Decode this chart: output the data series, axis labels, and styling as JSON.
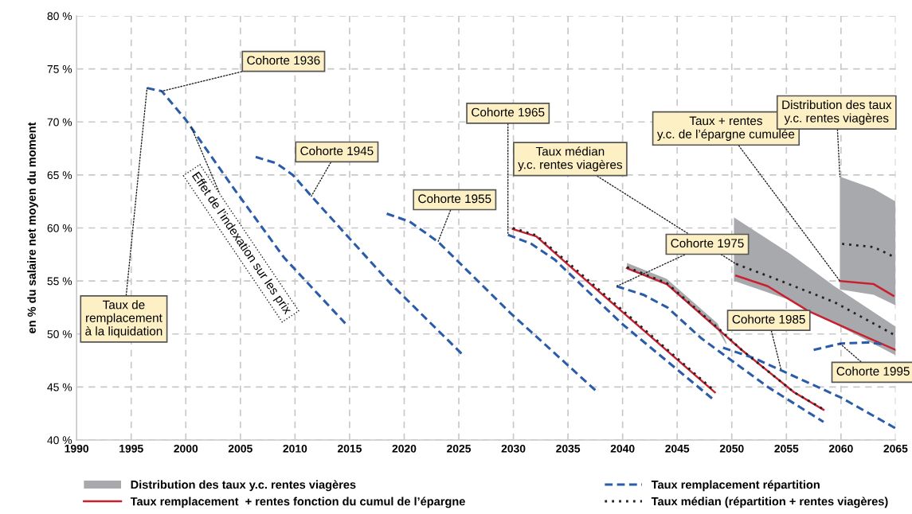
{
  "chart_data": {
    "type": "line",
    "ylabel": "en % du salaire net moyen du moment",
    "xlim": [
      1990,
      2065
    ],
    "xticks": [
      1990,
      1995,
      2000,
      2005,
      2010,
      2015,
      2020,
      2025,
      2030,
      2035,
      2040,
      2045,
      2050,
      2055,
      2060,
      2065
    ],
    "ylim": [
      40,
      80
    ],
    "yticks": [
      {
        "value": 40,
        "label": "40 %"
      },
      {
        "value": 45,
        "label": "45 %"
      },
      {
        "value": 50,
        "label": "50 %"
      },
      {
        "value": 55,
        "label": "55 %"
      },
      {
        "value": 60,
        "label": "60 %"
      },
      {
        "value": 65,
        "label": "65 %"
      },
      {
        "value": 70,
        "label": "70 %"
      },
      {
        "value": 75,
        "label": "75 %"
      },
      {
        "value": 80,
        "label": "80 %"
      }
    ],
    "grid": true,
    "legend": "bottom",
    "marker": "none",
    "series": [
      {
        "name": "Distribution des taux y.c. rentes viagères",
        "type": "area",
        "color": "#a8a9ad",
        "x": [
          2040.4,
          2044.05,
          2048.7,
          2049.5
        ],
        "values": [
          null,
          null,
          null,
          null
        ],
        "upper": [
          56.7,
          55.2,
          51.0,
          49.2
        ],
        "lower": [
          56.1,
          54.6,
          50.4,
          49.0
        ]
      },
      {
        "type": "area",
        "color": "#a8a9ad",
        "x": [
          2050.2,
          2055.3,
          2059.4,
          2065
        ],
        "values": [
          null,
          null,
          null,
          null
        ],
        "upper": [
          61.0,
          57.6,
          54.5,
          50.7
        ],
        "lower": [
          55.0,
          53.2,
          51.0,
          48.0
        ]
      },
      {
        "type": "area",
        "color": "#a8a9ad",
        "x": [
          2059.9,
          2063.0,
          2065
        ],
        "values": [
          null,
          null,
          null
        ],
        "upper": [
          64.85,
          63.7,
          62.5
        ],
        "lower": [
          54.2,
          53.7,
          52.7
        ]
      },
      {
        "name": "Taux remplacement  + rentes fonction du cumul de l’épargne",
        "line_style": "solid",
        "color": "#c8202f",
        "x": [
          2029.95,
          2032.1,
          2035.05,
          2048.45
        ],
        "values": [
          59.9,
          59.2,
          56.5,
          44.5
        ]
      },
      {
        "line_style": "solid",
        "color": "#c8202f",
        "x": [
          2040.4,
          2044.05,
          2048.7,
          2050.9,
          2053.3,
          2055.7,
          2058.4
        ],
        "values": [
          56.2,
          54.7,
          50.5,
          48.5,
          46.5,
          44.5,
          42.85
        ]
      },
      {
        "line_style": "solid",
        "color": "#c8202f",
        "x": [
          2050.4,
          2053.3,
          2056.95,
          2060.6,
          2065
        ],
        "values": [
          55.5,
          54.5,
          52.2,
          50.5,
          48.5
        ]
      },
      {
        "line_style": "solid",
        "color": "#c8202f",
        "x": [
          2059.9,
          2063.0,
          2064.8
        ],
        "values": [
          55.0,
          54.7,
          53.6
        ]
      },
      {
        "name": "Taux remplacement répartition",
        "line_style": "dashed",
        "color": "#2a5caa",
        "x": [
          1996.45,
          1997.8,
          2000.0,
          2004.2,
          2009.0,
          2014.6
        ],
        "values": [
          73.2,
          72.9,
          70.2,
          64.0,
          57.2,
          51.0
        ]
      },
      {
        "line_style": "dashed",
        "color": "#2a5caa",
        "x": [
          2006.4,
          2008.3,
          2009.8,
          2011.5,
          2015.0,
          2018.8,
          2025.3
        ],
        "values": [
          66.7,
          66.1,
          65.0,
          63.0,
          59.0,
          54.7,
          48.1
        ]
      },
      {
        "line_style": "dashed",
        "color": "#2a5caa",
        "x": [
          2018.4,
          2020.5,
          2023.1,
          2029.7,
          2037.5
        ],
        "values": [
          61.35,
          60.6,
          58.7,
          52.0,
          44.7
        ]
      },
      {
        "line_style": "dashed",
        "color": "#2a5caa",
        "x": [
          2029.5,
          2031.65,
          2033.8,
          2039.9,
          2048.45
        ],
        "values": [
          59.35,
          58.5,
          57.0,
          51.0,
          43.7
        ]
      },
      {
        "line_style": "dashed",
        "color": "#2a5caa",
        "x": [
          2039.45,
          2041.9,
          2044.1,
          2047.2,
          2053.3,
          2058.4
        ],
        "values": [
          54.5,
          53.7,
          52.5,
          49.6,
          45.0,
          41.7
        ]
      },
      {
        "line_style": "dashed",
        "color": "#2a5caa",
        "x": [
          2049.2,
          2052.1,
          2055.3,
          2060.0,
          2065.0
        ],
        "values": [
          48.7,
          47.7,
          46.2,
          44.0,
          41.1
        ]
      },
      {
        "line_style": "dashed",
        "color": "#2a5caa",
        "x": [
          2057.5,
          2060.0,
          2062.5,
          2064.0
        ],
        "values": [
          48.5,
          49.1,
          49.2,
          49.0
        ]
      },
      {
        "name": "Taux médian (répartition + rentes viagères)",
        "line_style": "dotted",
        "color": "#222222",
        "x": [
          2029.95,
          2032.1,
          2035.05,
          2048.45
        ],
        "values": [
          60.0,
          59.3,
          56.7,
          44.6
        ]
      },
      {
        "line_style": "dotted",
        "color": "#222222",
        "x": [
          2040.4,
          2044.05,
          2048.7,
          2050.9,
          2053.3,
          2055.7,
          2058.4
        ],
        "values": [
          56.3,
          54.8,
          50.6,
          48.5,
          46.5,
          44.5,
          42.9
        ]
      },
      {
        "line_style": "dotted",
        "color": "#222222",
        "x": [
          2050.4,
          2054.5,
          2059.4,
          2065.0
        ],
        "values": [
          56.6,
          55.0,
          53.0,
          49.85
        ]
      },
      {
        "line_style": "dotted",
        "color": "#222222",
        "x": [
          2060.1,
          2063.0,
          2065.0
        ],
        "values": [
          58.5,
          58.2,
          57.2
        ]
      }
    ],
    "annotations": [
      {
        "text": "Cohorte 1936",
        "x": 1997.8,
        "y": 72.9
      },
      {
        "text": "Taux de\nremplacement\nà la liquidation",
        "x": 1996.45,
        "y": 73.2
      },
      {
        "text": "Effet de l’indexation sur les prix",
        "x": 2000.5,
        "y": 69.5
      },
      {
        "text": "Cohorte 1945",
        "x": 2011.5,
        "y": 63.0
      },
      {
        "text": "Cohorte 1955",
        "x": 2023.1,
        "y": 58.7
      },
      {
        "text": "Cohorte 1965",
        "x": 2029.5,
        "y": 59.35
      },
      {
        "text": "Taux médian\ny.c. rentes viagères",
        "x": 2050.4,
        "y": 56.6
      },
      {
        "text": "Taux + rentes\ny.c. de l’épargne cumulée",
        "x": 2059.9,
        "y": 55.0
      },
      {
        "text": "Distribution des taux\ny.c. rentes viagères",
        "x": 2059.9,
        "y": 64.85
      },
      {
        "text": "Cohorte 1975",
        "x": 2039.45,
        "y": 54.5
      },
      {
        "text": "Cohorte 1985",
        "x": 2054.5,
        "y": 46.7
      },
      {
        "text": "Cohorte 1995",
        "x": 2059.9,
        "y": 49.1
      }
    ]
  }
}
